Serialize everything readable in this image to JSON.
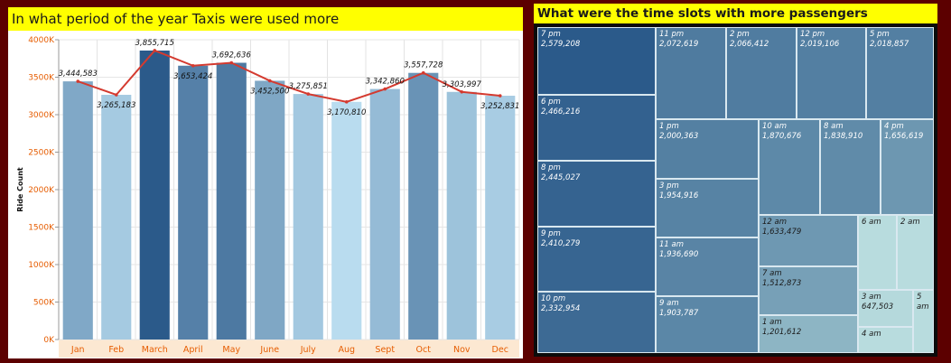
{
  "left_title": "In what period of the year Taxis were used more",
  "right_title": "What were the time slots with more passengers",
  "chart_data": [
    {
      "type": "bar",
      "title": "In what period of the year Taxis were used more",
      "xlabel": "",
      "ylabel": "Ride Count",
      "ylim": [
        0,
        4000000
      ],
      "yticks": [
        {
          "value": 0,
          "label": "0K"
        },
        {
          "value": 500000,
          "label": "500K"
        },
        {
          "value": 1000000,
          "label": "1000K"
        },
        {
          "value": 1500000,
          "label": "1500K"
        },
        {
          "value": 2000000,
          "label": "2000K"
        },
        {
          "value": 2500000,
          "label": "2500K"
        },
        {
          "value": 3000000,
          "label": "3000K"
        },
        {
          "value": 3500000,
          "label": "3500K"
        },
        {
          "value": 4000000,
          "label": "4000K"
        }
      ],
      "grid": true,
      "overlay": "line",
      "line_color": "#d43a2f",
      "bar_color_range": [
        "#b9dcef",
        "#2b5a8a"
      ],
      "categories": [
        "Jan",
        "Feb",
        "March",
        "April",
        "May",
        "June",
        "July",
        "Aug",
        "Sept",
        "Oct",
        "Nov",
        "Dec"
      ],
      "values": [
        3444583,
        3265183,
        3855715,
        3653424,
        3692636,
        3452500,
        3275851,
        3170810,
        3342860,
        3557728,
        3303997,
        3252831
      ],
      "value_labels": [
        "3,444,583",
        "3,265,183",
        "3,855,715",
        "3,653,424",
        "3,692,636",
        "3,452,500",
        "3,275,851",
        "3,170,810",
        "3,342,860",
        "3,557,728",
        "3,303,997",
        "3,252,831"
      ]
    },
    {
      "type": "treemap",
      "title": "What were the time slots with more passengers",
      "color_range": [
        "#bfe3e2",
        "#2b5a8a"
      ],
      "items": [
        {
          "label": "7 pm",
          "value": 2579208,
          "value_label": "2,579,208"
        },
        {
          "label": "6 pm",
          "value": 2466216,
          "value_label": "2,466,216"
        },
        {
          "label": "8 pm",
          "value": 2445027,
          "value_label": "2,445,027"
        },
        {
          "label": "9 pm",
          "value": 2410279,
          "value_label": "2,410,279"
        },
        {
          "label": "10 pm",
          "value": 2332954,
          "value_label": "2,332,954"
        },
        {
          "label": "11 pm",
          "value": 2072619,
          "value_label": "2,072,619"
        },
        {
          "label": "2 pm",
          "value": 2066412,
          "value_label": "2,066,412"
        },
        {
          "label": "12 pm",
          "value": 2019106,
          "value_label": "2,019,106"
        },
        {
          "label": "5 pm",
          "value": 2018857,
          "value_label": "2,018,857"
        },
        {
          "label": "1 pm",
          "value": 2000363,
          "value_label": "2,000,363"
        },
        {
          "label": "3 pm",
          "value": 1954916,
          "value_label": "1,954,916"
        },
        {
          "label": "11 am",
          "value": 1936690,
          "value_label": "1,936,690"
        },
        {
          "label": "9 am",
          "value": 1903787,
          "value_label": "1,903,787"
        },
        {
          "label": "10 am",
          "value": 1870676,
          "value_label": "1,870,676"
        },
        {
          "label": "8 am",
          "value": 1838910,
          "value_label": "1,838,910"
        },
        {
          "label": "4 pm",
          "value": 1656619,
          "value_label": "1,656,619"
        },
        {
          "label": "12 am",
          "value": 1633479,
          "value_label": "1,633,479"
        },
        {
          "label": "7 am",
          "value": 1512873,
          "value_label": "1,512,873"
        },
        {
          "label": "1 am",
          "value": 1201612,
          "value_label": "1,201,612"
        },
        {
          "label": "6 am",
          "value": null,
          "value_label": ""
        },
        {
          "label": "2 am",
          "value": null,
          "value_label": ""
        },
        {
          "label": "3 am",
          "value": 647503,
          "value_label": "647,503"
        },
        {
          "label": "5 am",
          "value": null,
          "value_label": ""
        },
        {
          "label": "4 am",
          "value": null,
          "value_label": ""
        }
      ]
    }
  ]
}
